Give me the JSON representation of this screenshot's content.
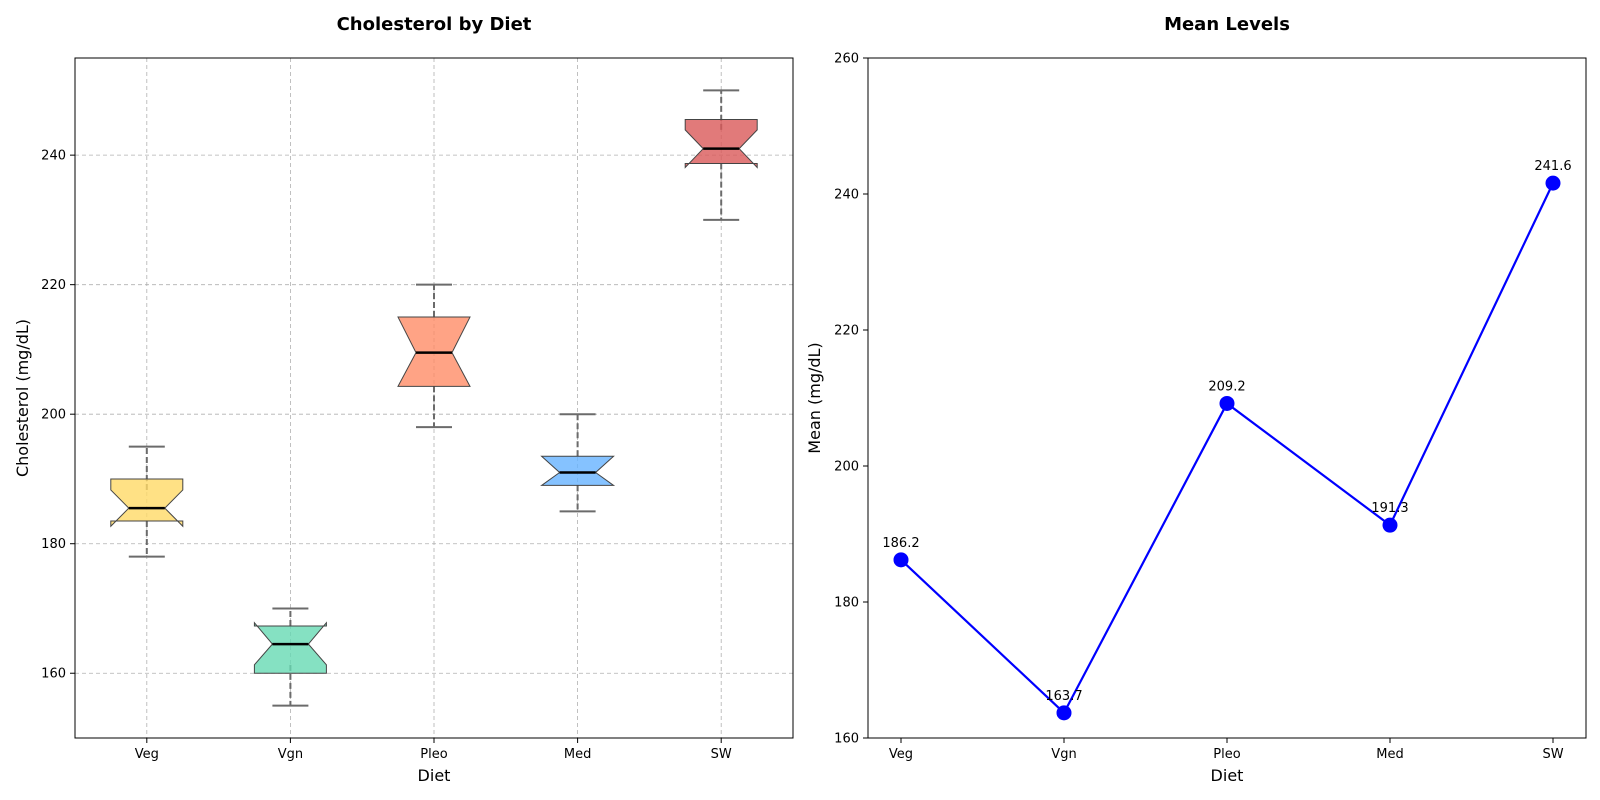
{
  "chart_data": [
    {
      "type": "boxplot",
      "title": "Cholesterol by Diet",
      "xlabel": "Diet",
      "ylabel": "Cholesterol (mg/dL)",
      "ylim": [
        150,
        255
      ],
      "yticks": [
        160,
        180,
        200,
        220,
        240
      ],
      "categories": [
        "Veg",
        "Vgn",
        "Pleo",
        "Med",
        "SW"
      ],
      "notched": true,
      "grid": true,
      "colors": [
        "#FFD966",
        "#66D9B3",
        "#FF8C66",
        "#66B3FF",
        "#D95959"
      ],
      "boxes": [
        {
          "whisker_low": 178,
          "q1": 183.5,
          "median": 185.5,
          "q3": 190,
          "whisker_high": 195,
          "notch_low": 182.7,
          "notch_high": 188.3
        },
        {
          "whisker_low": 155,
          "q1": 160,
          "median": 164.5,
          "q3": 167.3,
          "whisker_high": 170,
          "notch_low": 161.3,
          "notch_high": 167.8
        },
        {
          "whisker_low": 198,
          "q1": 204.3,
          "median": 209.5,
          "q3": 215,
          "whisker_high": 220,
          "notch_low": 204.3,
          "notch_high": 215
        },
        {
          "whisker_low": 185,
          "q1": 189,
          "median": 191,
          "q3": 193.5,
          "whisker_high": 200,
          "notch_low": 189,
          "notch_high": 193.5
        },
        {
          "whisker_low": 230,
          "q1": 238.7,
          "median": 241,
          "q3": 245.5,
          "whisker_high": 250,
          "notch_low": 238.1,
          "notch_high": 243.9
        }
      ]
    },
    {
      "type": "line",
      "title": "Mean Levels",
      "xlabel": "Diet",
      "ylabel": "Mean (mg/dL)",
      "ylim": [
        160,
        260
      ],
      "yticks": [
        160,
        180,
        200,
        220,
        240,
        260
      ],
      "categories": [
        "Veg",
        "Vgn",
        "Pleo",
        "Med",
        "SW"
      ],
      "grid": false,
      "color": "#0000FF",
      "values": [
        186.2,
        163.7,
        209.2,
        191.3,
        241.6
      ],
      "value_labels": [
        "186.2",
        "163.7",
        "209.2",
        "191.3",
        "241.6"
      ]
    }
  ]
}
